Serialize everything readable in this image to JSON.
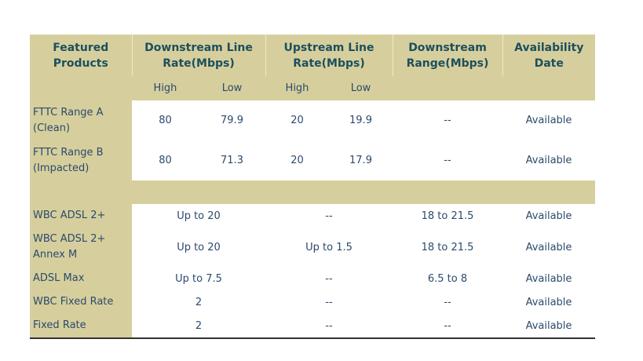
{
  "table": {
    "header": [
      "Featured Products",
      "Downstream Line Rate(Mbps)",
      "Upstream Line Rate(Mbps)",
      "Downstream Range(Mbps)",
      "Availability Date"
    ],
    "subheader": [
      "High",
      "Low",
      "High",
      "Low"
    ],
    "rows": [
      [
        "FTTC Range A (Clean)",
        "80",
        "79.9",
        "20",
        "19.9",
        "--",
        "Available"
      ],
      [
        "FTTC Range B (Impacted)",
        "80",
        "71.3",
        "20",
        "17.9",
        "--",
        "Available"
      ],
      [
        "WBC ADSL 2+",
        "Up to 20",
        "--",
        "18 to 21.5",
        "Available"
      ],
      [
        "WBC ADSL 2+ Annex M",
        "Up to 20",
        "Up to 1.5",
        "18 to 21.5",
        "Available"
      ],
      [
        "ADSL Max",
        "Up to 7.5",
        "--",
        "6.5 to 8",
        "Available"
      ],
      [
        "WBC Fixed Rate",
        "2",
        "--",
        "--",
        "Available"
      ],
      [
        "Fixed Rate",
        "2",
        "--",
        "--",
        "Available"
      ]
    ]
  }
}
